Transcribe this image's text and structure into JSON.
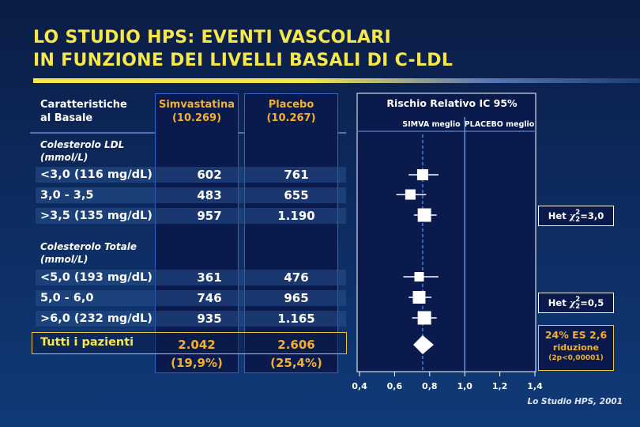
{
  "title_line1": "LO STUDIO HPS: EVENTI VASCOLARI",
  "title_line2": "IN FUNZIONE DEI LIVELLI BASALI DI C-LDL",
  "header": {
    "char_line1": "Caratteristiche",
    "char_line2": "al Basale",
    "simva_line1": "Simvastatina",
    "simva_line2": "(10.269)",
    "placebo_line1": "Placebo",
    "placebo_line2": "(10.267)",
    "rr_title": "Rischio Relativo IC 95%",
    "simva_better": "SIMVA meglio",
    "placebo_better": "PLACEBO meglio"
  },
  "sections": {
    "ldl_line1": "Colesterolo LDL",
    "ldl_line2": "(mmol/L)",
    "tot_line1": "Colesterolo Totale",
    "tot_line2": "(mmol/L)"
  },
  "rows": [
    {
      "label": "<3,0 (116 mg/dL)",
      "simva": "602",
      "placebo": "761"
    },
    {
      "label": "3,0 - 3,5",
      "simva": "483",
      "placebo": "655"
    },
    {
      "label": ">3,5 (135 mg/dL)",
      "simva": "957",
      "placebo": "1.190"
    },
    {
      "label": "<5,0 (193 mg/dL)",
      "simva": "361",
      "placebo": "476"
    },
    {
      "label": "5,0 - 6,0",
      "simva": "746",
      "placebo": "965"
    },
    {
      "label": ">6,0 (232 mg/dL)",
      "simva": "935",
      "placebo": "1.165"
    }
  ],
  "total": {
    "label": "Tutti i pazienti",
    "simva": "2.042",
    "simva_pct": "(19,9%)",
    "placebo": "2.606",
    "placebo_pct": "(25,4%)"
  },
  "het1": {
    "prefix": "Het",
    "sup": "2",
    "sub": "2",
    "value": "=3,0"
  },
  "het2": {
    "prefix": "Het",
    "sup": "2",
    "sub": "2",
    "value": "=0,5"
  },
  "reduction": {
    "line1": "24% ES 2,6",
    "line2": "riduzione",
    "line3": "(2p<0,00001)"
  },
  "source": "Lo Studio HPS, 2001",
  "colors": {
    "yellow": "#f7e84a",
    "orange": "#f5b02a",
    "panel": "#0b1a4c",
    "border": "#2f63c8",
    "diamond": "#ffffff"
  },
  "chart_data": {
    "type": "forest",
    "title": "Rischio Relativo IC 95%",
    "xlim": [
      0.4,
      1.4
    ],
    "xticks": [
      "0,4",
      "0,6",
      "0,8",
      "1,0",
      "1,2",
      "1,4"
    ],
    "reference_line": 1.0,
    "overall_line": 0.76,
    "rows": [
      {
        "label": "<3,0 (116 mg/dL)",
        "rr": 0.76,
        "lo": 0.68,
        "hi": 0.85
      },
      {
        "label": "3,0 - 3,5",
        "rr": 0.69,
        "lo": 0.61,
        "hi": 0.78
      },
      {
        "label": ">3,5 (135 mg/dL)",
        "rr": 0.77,
        "lo": 0.71,
        "hi": 0.84
      },
      {
        "label": "<5,0 (193 mg/dL)",
        "rr": 0.74,
        "lo": 0.65,
        "hi": 0.85
      },
      {
        "label": "5,0 - 6,0",
        "rr": 0.74,
        "lo": 0.68,
        "hi": 0.81
      },
      {
        "label": ">6,0 (232 mg/dL)",
        "rr": 0.77,
        "lo": 0.7,
        "hi": 0.84
      },
      {
        "label": "Tutti i pazienti",
        "rr": 0.76,
        "lo": 0.72,
        "hi": 0.81,
        "marker": "diamond"
      }
    ]
  }
}
